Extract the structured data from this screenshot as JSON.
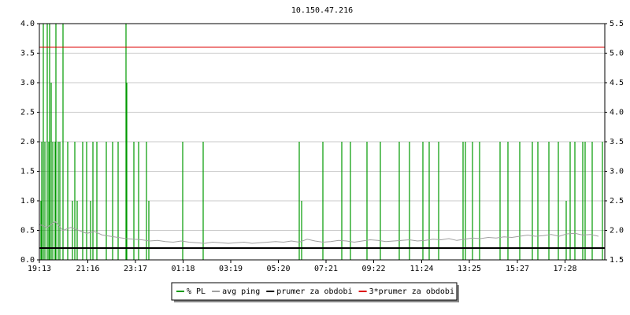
{
  "chart_data": {
    "type": "line",
    "title": "10.150.47.216",
    "xlim": [
      0,
      1436
    ],
    "xticks": [
      {
        "value": 0,
        "label": "19:13"
      },
      {
        "value": 123,
        "label": "21:16"
      },
      {
        "value": 244,
        "label": "23:17"
      },
      {
        "value": 365,
        "label": "01:18"
      },
      {
        "value": 486,
        "label": "03:19"
      },
      {
        "value": 607,
        "label": "05:20"
      },
      {
        "value": 728,
        "label": "07:21"
      },
      {
        "value": 849,
        "label": "09:22"
      },
      {
        "value": 971,
        "label": "11:24"
      },
      {
        "value": 1092,
        "label": "13:25"
      },
      {
        "value": 1214,
        "label": "15:27"
      },
      {
        "value": 1335,
        "label": "17:28"
      }
    ],
    "ylim": [
      0,
      4
    ],
    "yticks": [
      {
        "value": 0,
        "label": "0.0"
      },
      {
        "value": 0.5,
        "label": "0.5"
      },
      {
        "value": 1,
        "label": "1.0"
      },
      {
        "value": 1.5,
        "label": "1.5"
      },
      {
        "value": 2,
        "label": "2.0"
      },
      {
        "value": 2.5,
        "label": "2.5"
      },
      {
        "value": 3,
        "label": "3.0"
      },
      {
        "value": 3.5,
        "label": "3.5"
      },
      {
        "value": 4,
        "label": "4.0"
      }
    ],
    "y2lim": [
      1.5,
      5.5
    ],
    "y2ticks": [
      1.5,
      {
        "value": 2,
        "label": "2.0"
      },
      2.5,
      {
        "value": 3,
        "label": "3.0"
      },
      3.5,
      {
        "value": 4,
        "label": "4.0"
      },
      4.5,
      {
        "value": 5,
        "label": "5.0"
      },
      5.5
    ],
    "grid": true,
    "legend": "bottom",
    "series": [
      {
        "name": "% PL",
        "color": "#009900",
        "type": "spike",
        "x": [
          4,
          6,
          10,
          14,
          20,
          24,
          26,
          30,
          34,
          40,
          42,
          48,
          52,
          60,
          72,
          84,
          90,
          96,
          110,
          120,
          130,
          136,
          146,
          170,
          186,
          200,
          220,
          222,
          240,
          252,
          272,
          278,
          364,
          416,
          660,
          666,
          720,
          768,
          790,
          832,
          866,
          914,
          940,
          974,
          990,
          1014,
          1076,
          1082,
          1100,
          1118,
          1170,
          1190,
          1220,
          1252,
          1266,
          1294,
          1318,
          1338,
          1348,
          1360,
          1380,
          1386,
          1404,
          1430
        ],
        "values": [
          1,
          2,
          4,
          2,
          4,
          2,
          4,
          3,
          2,
          2,
          4,
          2,
          2,
          4,
          2,
          1,
          2,
          1,
          2,
          2,
          1,
          2,
          2,
          2,
          2,
          2,
          4,
          3,
          2,
          2,
          2,
          1,
          2,
          2,
          2,
          1,
          2,
          2,
          2,
          2,
          2,
          2,
          2,
          2,
          2,
          2,
          2,
          2,
          2,
          2,
          2,
          2,
          2,
          2,
          2,
          2,
          2,
          1,
          2,
          2,
          2,
          2,
          2,
          2
        ]
      },
      {
        "name": "avg ping",
        "color": "#a0a0a0",
        "axis": "y2",
        "x": [
          0,
          20,
          40,
          60,
          80,
          100,
          120,
          140,
          160,
          180,
          200,
          220,
          240,
          260,
          280,
          300,
          320,
          340,
          360,
          380,
          400,
          420,
          440,
          460,
          480,
          500,
          520,
          540,
          560,
          580,
          600,
          620,
          640,
          660,
          680,
          700,
          720,
          740,
          760,
          780,
          800,
          820,
          840,
          860,
          880,
          900,
          920,
          940,
          960,
          980,
          1000,
          1020,
          1040,
          1060,
          1080,
          1100,
          1120,
          1140,
          1160,
          1180,
          1200,
          1220,
          1240,
          1260,
          1280,
          1300,
          1320,
          1340,
          1360,
          1380,
          1400,
          1420
        ],
        "values": [
          2.1,
          2.05,
          2.15,
          2.0,
          2.05,
          2.0,
          1.95,
          1.98,
          1.92,
          1.9,
          1.88,
          1.86,
          1.85,
          1.84,
          1.82,
          1.83,
          1.81,
          1.8,
          1.82,
          1.8,
          1.79,
          1.78,
          1.8,
          1.79,
          1.78,
          1.79,
          1.8,
          1.78,
          1.79,
          1.8,
          1.81,
          1.8,
          1.82,
          1.8,
          1.85,
          1.82,
          1.8,
          1.81,
          1.83,
          1.82,
          1.8,
          1.82,
          1.84,
          1.83,
          1.81,
          1.82,
          1.83,
          1.84,
          1.82,
          1.83,
          1.85,
          1.84,
          1.86,
          1.83,
          1.85,
          1.87,
          1.86,
          1.88,
          1.87,
          1.89,
          1.88,
          1.9,
          1.92,
          1.9,
          1.91,
          1.93,
          1.9,
          1.94,
          1.95,
          1.92,
          1.93,
          1.9
        ]
      },
      {
        "name": "prumer za obdobi",
        "color": "#000000",
        "axis": "y2",
        "width": 2,
        "x": [
          0,
          1436
        ],
        "values": [
          1.7,
          1.7
        ]
      },
      {
        "name": "3*prumer za obdobi",
        "color": "#dd0000",
        "axis": "y2",
        "width": 1,
        "x": [
          0,
          1436
        ],
        "values": [
          5.1,
          5.1
        ]
      }
    ]
  }
}
